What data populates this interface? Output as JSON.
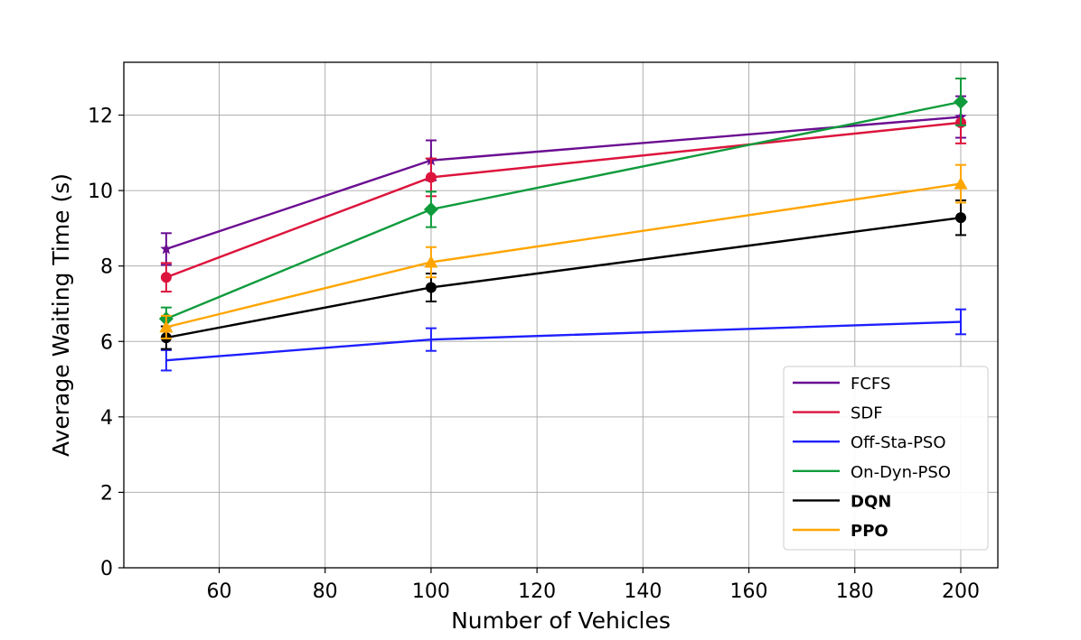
{
  "chart_data": {
    "type": "line",
    "title": "",
    "xlabel": "Number of Vehicles",
    "ylabel": "Average Waiting Time (s)",
    "x": [
      50,
      100,
      200
    ],
    "xlim": [
      42,
      207
    ],
    "ylim": [
      0,
      13.4
    ],
    "xticks": [
      60,
      80,
      100,
      120,
      140,
      160,
      180,
      200
    ],
    "yticks": [
      0,
      2,
      4,
      6,
      8,
      10,
      12
    ],
    "grid": true,
    "legend_position": "bottom-right",
    "series": [
      {
        "name": "FCFS",
        "color": "#6a0d91",
        "marker": "star",
        "bold": false,
        "values": [
          8.45,
          10.8,
          11.95
        ],
        "errors": [
          0.42,
          0.53,
          0.55
        ]
      },
      {
        "name": "SDF",
        "color": "#dc143c",
        "marker": "circle",
        "bold": false,
        "values": [
          7.7,
          10.35,
          11.8
        ],
        "errors": [
          0.38,
          0.5,
          0.55
        ]
      },
      {
        "name": "Off-Sta-PSO",
        "color": "#1f1fff",
        "marker": "none",
        "bold": false,
        "values": [
          5.5,
          6.05,
          6.52
        ],
        "errors": [
          0.27,
          0.3,
          0.33
        ]
      },
      {
        "name": "On-Dyn-PSO",
        "color": "#0f9b3c",
        "marker": "diamond",
        "bold": false,
        "values": [
          6.6,
          9.5,
          12.35
        ],
        "errors": [
          0.3,
          0.47,
          0.62
        ]
      },
      {
        "name": "DQN",
        "color": "#000000",
        "marker": "circle",
        "bold": true,
        "values": [
          6.1,
          7.43,
          9.28
        ],
        "errors": [
          0.3,
          0.37,
          0.46
        ]
      },
      {
        "name": "PPO",
        "color": "#ffa500",
        "marker": "triangle",
        "bold": true,
        "values": [
          6.38,
          8.1,
          10.18
        ],
        "errors": [
          0.3,
          0.4,
          0.5
        ]
      }
    ]
  }
}
